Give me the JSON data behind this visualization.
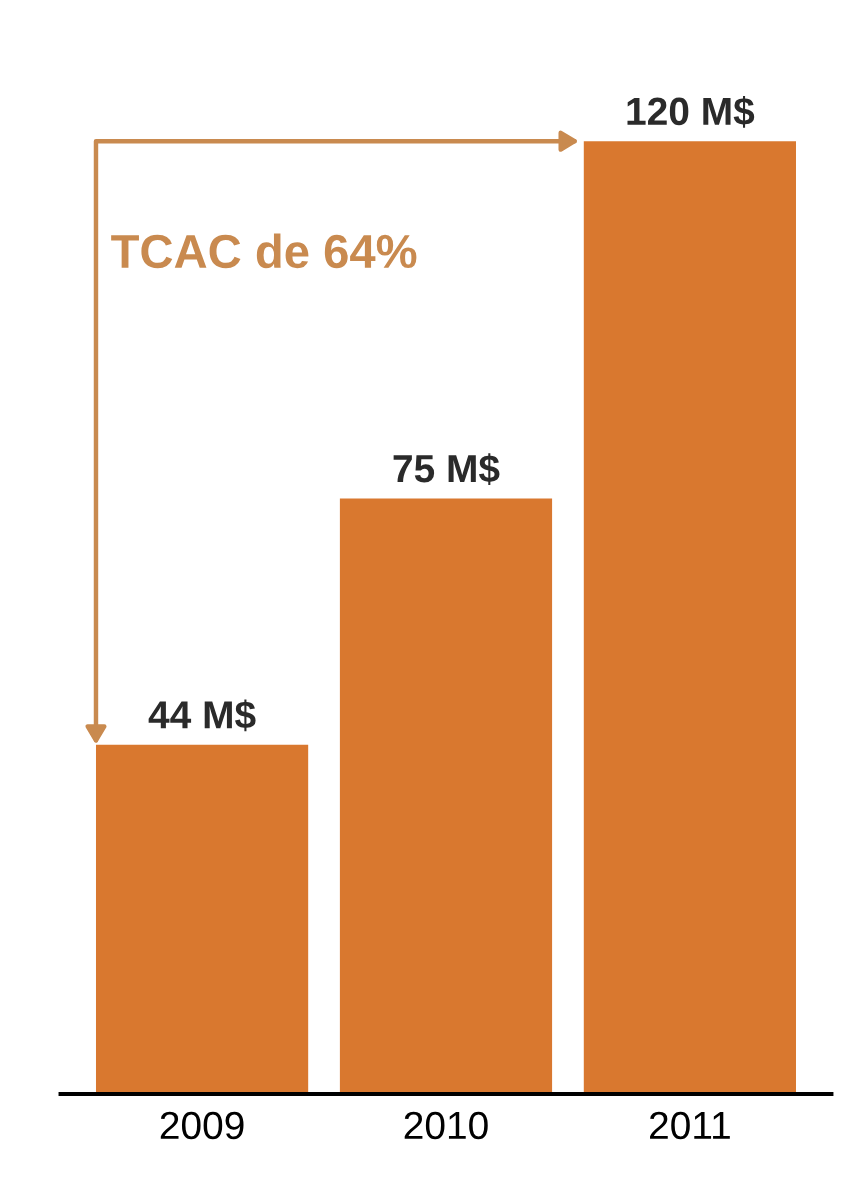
{
  "chart_data": {
    "type": "bar",
    "categories": [
      "2009",
      "2010",
      "2011"
    ],
    "values": [
      44,
      75,
      120
    ],
    "value_labels": [
      "44 M$",
      "75 M$",
      "120 M$"
    ],
    "color": "#d9782f",
    "annotations": [
      "TCAC de 64%"
    ],
    "grid": false,
    "legend": false
  }
}
